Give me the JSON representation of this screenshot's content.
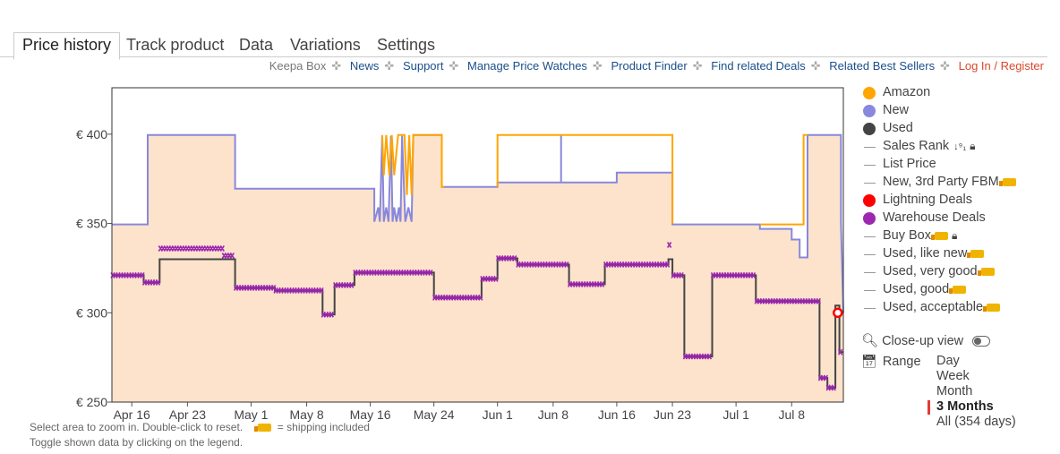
{
  "tabs": [
    "Price history",
    "Track product",
    "Data",
    "Variations",
    "Settings"
  ],
  "links": [
    "Keepa Box",
    "News",
    "Support",
    "Manage Price Watches",
    "Product Finder",
    "Find related Deals",
    "Related Best Sellers",
    "Log In / Register"
  ],
  "legend": {
    "amazon": "Amazon",
    "new": "New",
    "used": "Used",
    "sales_rank": "Sales Rank",
    "list_price": "List Price",
    "new_fbm": "New, 3rd Party FBM",
    "lightning": "Lightning Deals",
    "warehouse": "Warehouse Deals",
    "buy_box": "Buy Box",
    "used_like_new": "Used, like new",
    "used_very_good": "Used, very good",
    "used_good": "Used, good",
    "used_acceptable": "Used, acceptable"
  },
  "colors": {
    "amazon": "#ffa500",
    "new": "#8888dd",
    "used": "#444444",
    "lightning": "#ff0000",
    "warehouse": "#9c27b0",
    "fill": "#fde3cc"
  },
  "controls": {
    "closeup": "Close-up view",
    "range": "Range",
    "range_options": [
      "Day",
      "Week",
      "Month",
      "3 Months",
      "All (354 days)"
    ],
    "selected_range": "3 Months"
  },
  "hints": {
    "line1": "Select area to zoom in. Double-click to reset.",
    "shipping": "= shipping included",
    "line2": "Toggle shown data by clicking on the legend."
  },
  "chart_data": {
    "type": "line",
    "x_unit": "days",
    "x_ticks": [
      {
        "label": "Apr 16",
        "x": 0
      },
      {
        "label": "Apr 23",
        "x": 7
      },
      {
        "label": "May 1",
        "x": 15
      },
      {
        "label": "May 8",
        "x": 22
      },
      {
        "label": "May 16",
        "x": 30
      },
      {
        "label": "May 24",
        "x": 38
      },
      {
        "label": "Jun 1",
        "x": 46
      },
      {
        "label": "Jun 8",
        "x": 53
      },
      {
        "label": "Jun 16",
        "x": 61
      },
      {
        "label": "Jun 23",
        "x": 68
      },
      {
        "label": "Jul 1",
        "x": 76
      },
      {
        "label": "Jul 8",
        "x": 83
      }
    ],
    "y_ticks": [
      {
        "label": "€ 250",
        "v": 250
      },
      {
        "label": "€ 300",
        "v": 300
      },
      {
        "label": "€ 350",
        "v": 350
      },
      {
        "label": "€ 400",
        "v": 400
      }
    ],
    "xlim": [
      -2.5,
      89.5
    ],
    "ylim": [
      250,
      426
    ],
    "series": [
      {
        "name": "New",
        "key": "new",
        "points": [
          [
            -2.5,
            349.5
          ],
          [
            2,
            349.5
          ],
          [
            2,
            399.5
          ],
          [
            13,
            399.5
          ],
          [
            13,
            369.5
          ],
          [
            30.5,
            369.5
          ],
          [
            30.5,
            351
          ],
          [
            31,
            359
          ],
          [
            31.2,
            351
          ],
          [
            31.5,
            399
          ],
          [
            31.7,
            351
          ],
          [
            32,
            359
          ],
          [
            32.3,
            351
          ],
          [
            32.6,
            399
          ],
          [
            32.8,
            351
          ],
          [
            33,
            359
          ],
          [
            33.3,
            351
          ],
          [
            33.6,
            359
          ],
          [
            33.8,
            351
          ],
          [
            34,
            399
          ],
          [
            34.4,
            351
          ],
          [
            34.8,
            359
          ],
          [
            35.2,
            351
          ],
          [
            35.4,
            399.5
          ],
          [
            39,
            399.5
          ],
          [
            39,
            370.5
          ],
          [
            46,
            370.5
          ],
          [
            46,
            373
          ],
          [
            54,
            373
          ],
          [
            54,
            399.5
          ],
          [
            54,
            373
          ],
          [
            61,
            373
          ],
          [
            61,
            378.5
          ],
          [
            68,
            378.5
          ],
          [
            68,
            349.5
          ],
          [
            79,
            349.5
          ],
          [
            79,
            347
          ],
          [
            83,
            347
          ],
          [
            83,
            341
          ],
          [
            84,
            341
          ],
          [
            84,
            331
          ],
          [
            85,
            331
          ],
          [
            85,
            399.5
          ],
          [
            89.2,
            399.5
          ],
          [
            89.2,
            350
          ],
          [
            89.5,
            300
          ]
        ]
      },
      {
        "name": "Amazon",
        "key": "amazon",
        "points": [
          [
            31.5,
            399.5
          ],
          [
            31.7,
            377
          ],
          [
            32.0,
            399.5
          ],
          [
            32.4,
            377
          ],
          [
            32.7,
            399.5
          ],
          [
            33.0,
            377
          ],
          [
            33.5,
            399.5
          ],
          [
            34.3,
            399.5
          ],
          [
            34.6,
            366
          ],
          [
            34.9,
            399.5
          ],
          [
            35.2,
            366
          ],
          [
            35.4,
            399.5
          ],
          [
            39.0,
            399.5
          ],
          [
            39.0,
            370.5
          ],
          [
            39.3,
            370.5
          ],
          null,
          [
            46,
            370.5
          ],
          [
            46,
            399.5
          ],
          [
            68,
            399.5
          ],
          [
            68,
            350
          ],
          null,
          [
            79,
            349.5
          ],
          [
            84.5,
            349.5
          ],
          [
            84.5,
            399.5
          ],
          [
            85,
            399.5
          ]
        ]
      },
      {
        "name": "Used",
        "key": "used",
        "points": [
          [
            -2.5,
            321
          ],
          [
            1.5,
            321
          ],
          [
            1.5,
            317
          ],
          [
            3.5,
            317
          ],
          [
            3.5,
            330
          ],
          [
            13,
            330
          ],
          [
            13,
            314
          ],
          [
            18,
            314
          ],
          [
            18,
            312.5
          ],
          [
            24,
            312.5
          ],
          [
            24,
            299
          ],
          [
            25.5,
            299
          ],
          [
            25.5,
            315.5
          ],
          [
            28,
            315.5
          ],
          [
            28,
            322.5
          ],
          [
            38,
            322.5
          ],
          [
            38,
            308.5
          ],
          [
            44,
            308.5
          ],
          [
            44,
            319
          ],
          [
            46,
            319
          ],
          [
            46,
            330.5
          ],
          [
            48.5,
            330.5
          ],
          [
            48.5,
            327
          ],
          [
            55,
            327
          ],
          [
            55,
            316
          ],
          [
            59.5,
            316
          ],
          [
            59.5,
            327
          ],
          [
            67.5,
            327
          ],
          [
            67.5,
            330
          ],
          [
            68,
            330
          ],
          [
            68,
            321
          ],
          [
            69.5,
            321
          ],
          [
            69.5,
            275.5
          ],
          [
            73,
            275.5
          ],
          [
            73,
            321
          ],
          [
            78.5,
            321
          ],
          [
            78.5,
            306.5
          ],
          [
            86.5,
            306.5
          ],
          [
            86.5,
            263.5
          ],
          [
            87.5,
            263.5
          ],
          [
            87.5,
            258
          ],
          [
            88.5,
            258
          ],
          [
            88.5,
            304
          ],
          [
            89,
            304
          ],
          [
            89,
            278
          ],
          [
            89.5,
            278
          ]
        ]
      }
    ],
    "warehouse_deals": [
      {
        "from": -2.5,
        "to": 1.5,
        "v": 321
      },
      {
        "from": 1.5,
        "to": 3.5,
        "v": 317
      },
      {
        "from": 3.5,
        "to": 11.5,
        "v": 336
      },
      {
        "from": 11.5,
        "to": 13,
        "v": 332
      },
      {
        "from": 13,
        "to": 18,
        "v": 314
      },
      {
        "from": 18,
        "to": 24,
        "v": 312.5
      },
      {
        "from": 24,
        "to": 25.5,
        "v": 299
      },
      {
        "from": 25.5,
        "to": 28,
        "v": 315.5
      },
      {
        "from": 28,
        "to": 38,
        "v": 322.5
      },
      {
        "from": 38,
        "to": 44,
        "v": 308.5
      },
      {
        "from": 44,
        "to": 46,
        "v": 319
      },
      {
        "from": 46,
        "to": 48.5,
        "v": 330.5
      },
      {
        "from": 48.5,
        "to": 55,
        "v": 327
      },
      {
        "from": 55,
        "to": 59.5,
        "v": 316
      },
      {
        "from": 59.5,
        "to": 67.5,
        "v": 327
      },
      {
        "from": 67.5,
        "to": 67.9,
        "v": 338
      },
      {
        "from": 68,
        "to": 69.5,
        "v": 321
      },
      {
        "from": 69.5,
        "to": 73,
        "v": 275.5
      },
      {
        "from": 73,
        "to": 78.5,
        "v": 321
      },
      {
        "from": 78.5,
        "to": 86.5,
        "v": 306.5
      },
      {
        "from": 86.5,
        "to": 87.5,
        "v": 263.5
      },
      {
        "from": 87.5,
        "to": 88.5,
        "v": 258
      },
      {
        "from": 89,
        "to": 89.4,
        "v": 278
      }
    ],
    "lightning_deal": {
      "x": 88.8,
      "v": 300
    }
  }
}
